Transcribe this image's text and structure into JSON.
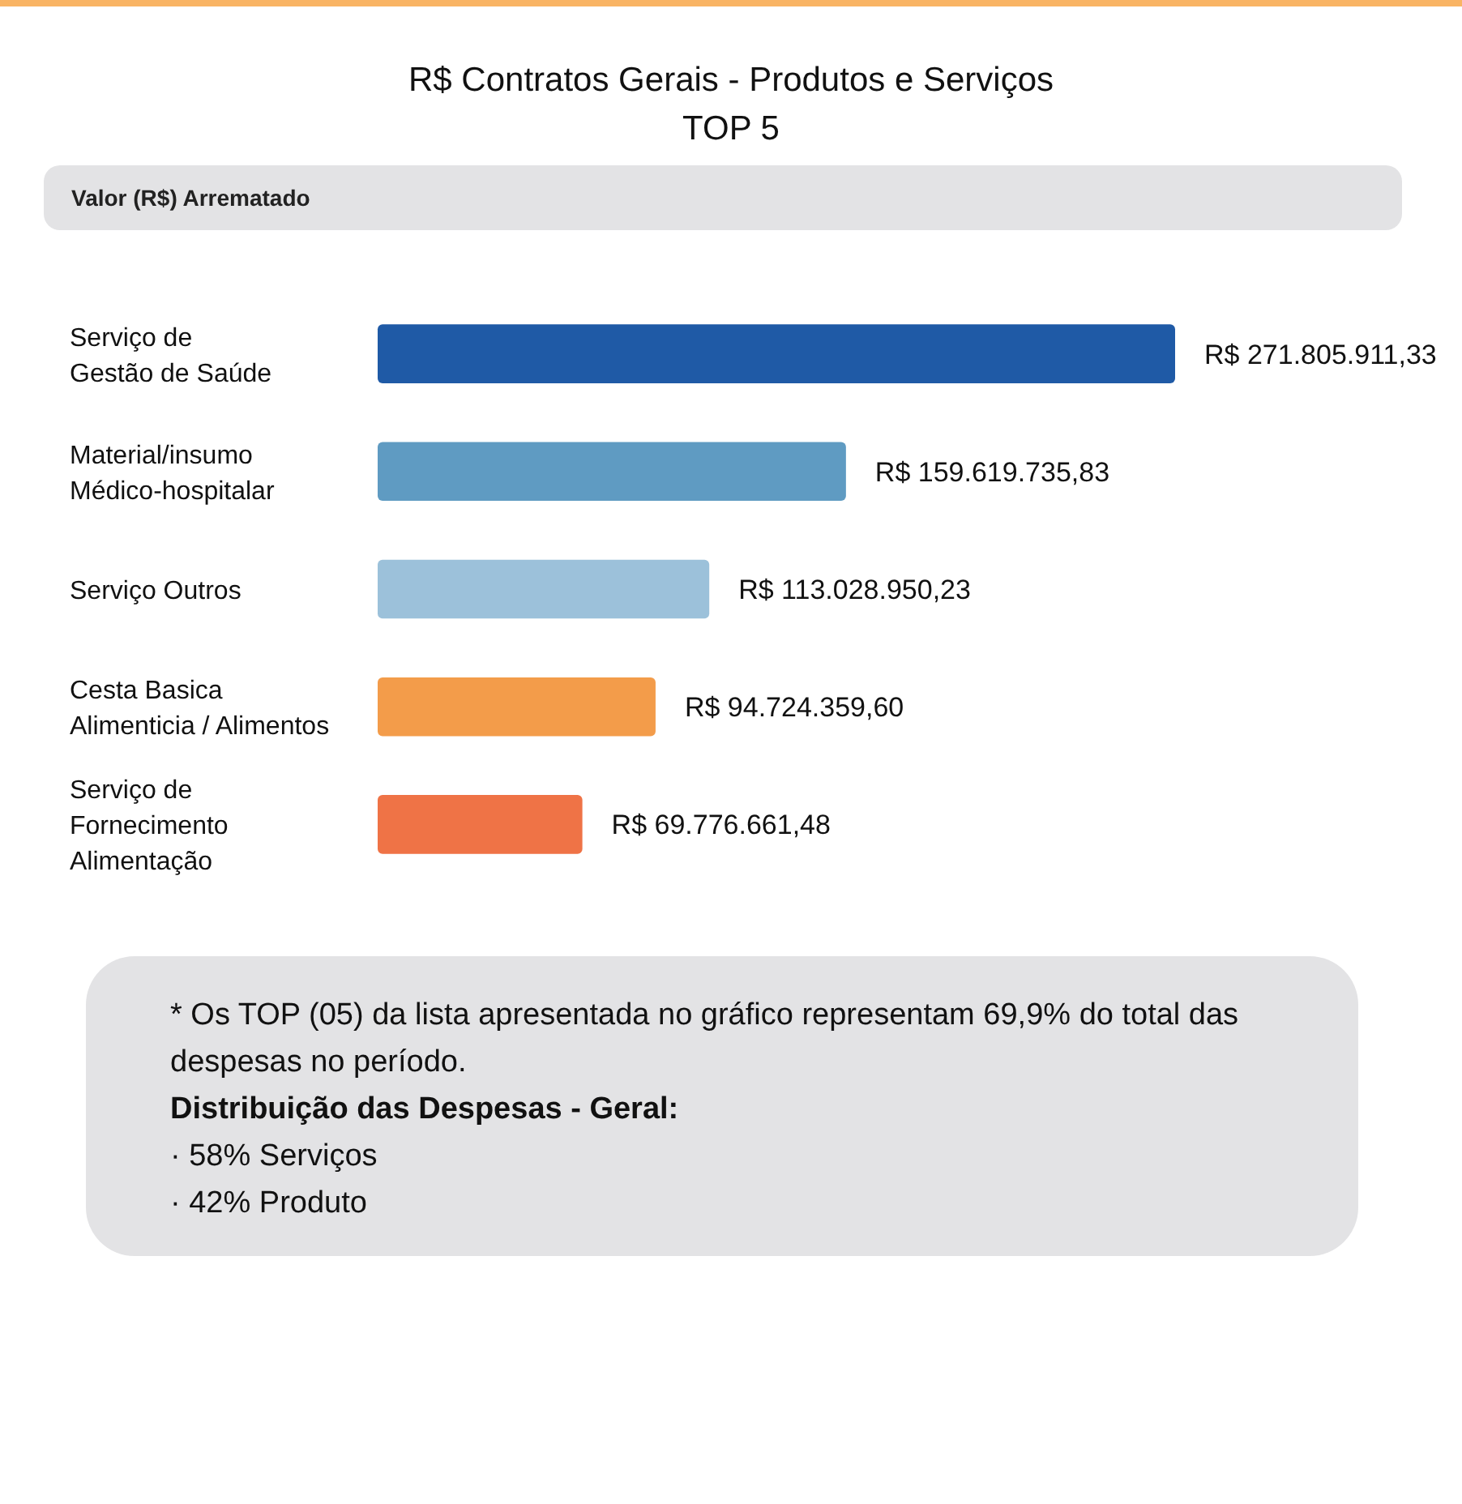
{
  "chart_data": {
    "type": "bar",
    "orientation": "horizontal",
    "title": "R$ Contratos Gerais - Produtos e Serviços",
    "subtitle": "TOP 5",
    "xlabel": "Valor (R$) Arrematado",
    "categories": [
      "Serviço de\nGestão de Saúde",
      "Material/insumo\nMédico-hospitalar",
      "Serviço Outros",
      "Cesta Basica\nAlimenticia / Alimentos",
      "Serviço de\nFornecimento\nAlimentação"
    ],
    "values": [
      271805911.33,
      159619735.83,
      113028950.23,
      94724359.6,
      69776661.48
    ],
    "colors": [
      "#1f5aa6",
      "#5f9bc2",
      "#9cc1da",
      "#f39c4a",
      "#ef7346"
    ],
    "value_labels": [
      "R$ 271.805.911,33",
      "R$ 159.619.735,83",
      "R$ 113.028.950,23",
      "R$ 94.724.359,60",
      "R$ 69.776.661,48"
    ],
    "annotations": [
      "* Os TOP (05) da lista apresentada no gráfico representam 69,9% do total das despesas no período.",
      "Distribuição das Despesas - Geral:",
      "· 58% Serviços",
      "· 42% Produto"
    ]
  }
}
